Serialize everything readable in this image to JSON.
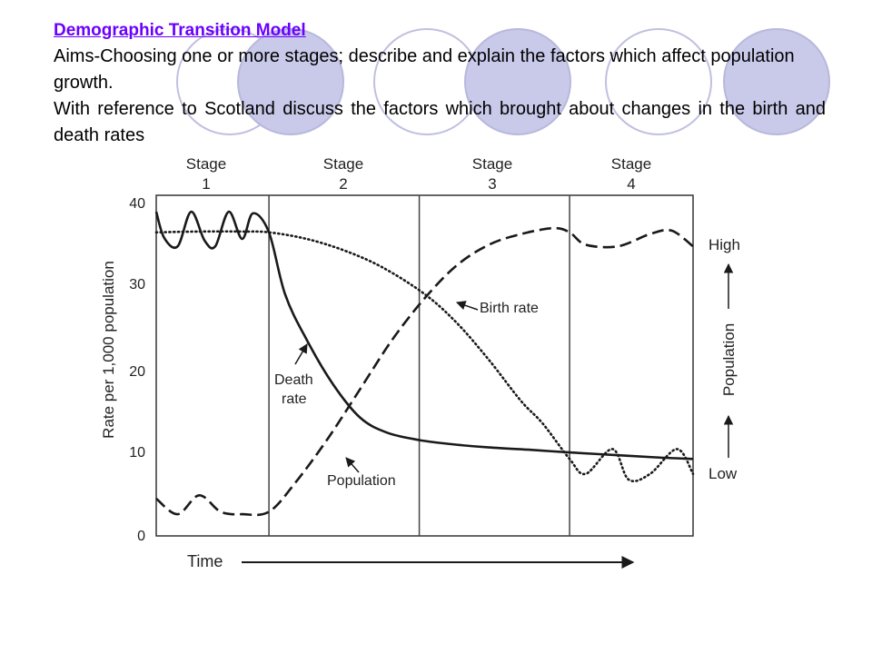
{
  "slide": {
    "title": "Demographic Transition Model",
    "paragraph1": "Aims-Choosing one or more stages; describe and explain the factors which affect population growth.",
    "paragraph2": "With reference to Scotland discuss the factors which brought about  changes in the birth and death rates"
  },
  "colors": {
    "title": "#6a00ff",
    "deco_circle_fill": "#c9c9ea",
    "deco_circle_stroke": "#b8b8dc",
    "chart_line": "#1a1a1a"
  },
  "chart_data": {
    "type": "line",
    "title": "",
    "xlabel": "Time",
    "ylabel": "Rate per 1,000 population",
    "ylabel_right": "Population",
    "right_axis_labels": [
      "High",
      "Low"
    ],
    "ylim": [
      0,
      40
    ],
    "yticks": [
      "0",
      "10",
      "20",
      "30",
      "40"
    ],
    "stages": [
      {
        "line1": "Stage",
        "line2": "1"
      },
      {
        "line1": "Stage",
        "line2": "2"
      },
      {
        "line1": "Stage",
        "line2": "3"
      },
      {
        "line1": "Stage",
        "line2": "4"
      }
    ],
    "x_unit": "fraction of time axis",
    "stage_boundaries": [
      0.21,
      0.49,
      0.77
    ],
    "series": [
      {
        "name": "Birth rate",
        "style": "dotted",
        "x": [
          0,
          0.08,
          0.16,
          0.21,
          0.28,
          0.35,
          0.42,
          0.5,
          0.56,
          0.62,
          0.68,
          0.72,
          0.77,
          0.8,
          0.85,
          0.88,
          0.92,
          0.97,
          1.0
        ],
        "y": [
          36.5,
          36.6,
          36.6,
          36.5,
          35.7,
          34.3,
          32.3,
          29,
          25.5,
          21,
          16,
          13.3,
          9,
          7.2,
          10.2,
          6.5,
          7.2,
          10.2,
          7.2
        ]
      },
      {
        "name": "Death rate",
        "style": "solid",
        "x": [
          0,
          0.015,
          0.04,
          0.065,
          0.09,
          0.11,
          0.135,
          0.16,
          0.18,
          0.21,
          0.24,
          0.28,
          0.33,
          0.38,
          0.43,
          0.49,
          0.55,
          0.62,
          0.7,
          0.77,
          0.85,
          0.93,
          1.0
        ],
        "y": [
          39,
          35.8,
          34.8,
          39,
          35.5,
          34.8,
          39,
          35.7,
          38.8,
          36.5,
          29,
          23.5,
          18,
          14,
          12.2,
          11.3,
          10.8,
          10.4,
          10.1,
          9.8,
          9.5,
          9.2,
          9.0
        ]
      },
      {
        "name": "Population",
        "style": "dashed",
        "x": [
          0,
          0.04,
          0.08,
          0.12,
          0.16,
          0.21,
          0.26,
          0.32,
          0.38,
          0.44,
          0.5,
          0.56,
          0.62,
          0.68,
          0.74,
          0.77,
          0.8,
          0.86,
          0.92,
          0.96,
          1.0
        ],
        "y": [
          4.2,
          2.3,
          4.6,
          2.6,
          2.3,
          2.6,
          6.2,
          11.5,
          17.5,
          23.5,
          28.5,
          32.5,
          35,
          36.3,
          37,
          36.5,
          35,
          34.8,
          36.3,
          36.7,
          34.8
        ]
      }
    ],
    "annotations": [
      {
        "text": "Birth rate",
        "points_to": "Birth rate"
      },
      {
        "text_lines": [
          "Death",
          "rate"
        ],
        "points_to": "Death rate"
      },
      {
        "text": "Population",
        "points_to": "Population"
      }
    ]
  }
}
